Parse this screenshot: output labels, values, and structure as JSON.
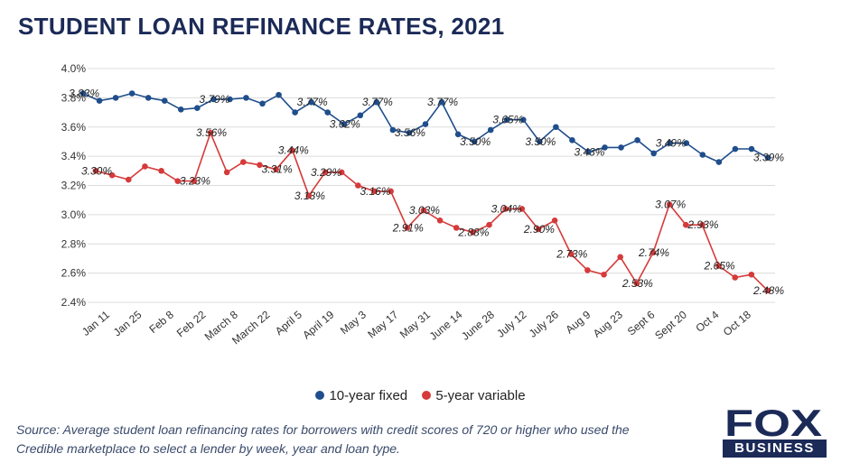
{
  "title": "STUDENT LOAN REFINANCE RATES, 2021",
  "source": "Source: Average student loan refinancing rates for borrowers with credit scores of 720 or higher who used the Credible marketplace to select a lender by week, year and loan type.",
  "logo": {
    "top": "FOX",
    "bottom": "BUSINESS"
  },
  "chart_data": {
    "type": "line",
    "title": "STUDENT LOAN REFINANCE RATES, 2021",
    "xlabel": "",
    "ylabel": "",
    "ylim": [
      2.4,
      4.0
    ],
    "yticks": [
      "4.0%",
      "3.8%",
      "3.6%",
      "3.4%",
      "3.2%",
      "3.0%",
      "2.8%",
      "2.6%",
      "2.4%"
    ],
    "ytick_values": [
      4.0,
      3.8,
      3.6,
      3.4,
      3.2,
      3.0,
      2.8,
      2.6,
      2.4
    ],
    "x_tick_labels": [
      "Jan 11",
      "Jan 25",
      "Feb 8",
      "Feb 22",
      "March 8",
      "March 22",
      "April 5",
      "April 19",
      "May 3",
      "May 17",
      "May 31",
      "June 14",
      "June 28",
      "July 12",
      "July 26",
      "Aug 9",
      "Aug 23",
      "Sept 6",
      "Sept 20",
      "Oct 4",
      "Oct 18"
    ],
    "grid": true,
    "legend_position": "bottom",
    "series": [
      {
        "name": "10-year fixed",
        "color": "#1f4e8c",
        "values": [
          3.83,
          3.78,
          3.8,
          3.83,
          3.8,
          3.78,
          3.72,
          3.73,
          3.79,
          3.79,
          3.8,
          3.76,
          3.82,
          3.7,
          3.77,
          3.7,
          3.62,
          3.68,
          3.77,
          3.58,
          3.56,
          3.62,
          3.77,
          3.55,
          3.5,
          3.58,
          3.65,
          3.65,
          3.5,
          3.6,
          3.51,
          3.43,
          3.46,
          3.46,
          3.51,
          3.42,
          3.49,
          3.49,
          3.41,
          3.36,
          3.45,
          3.45,
          3.39
        ],
        "labels": [
          {
            "i": 0,
            "text": "3.83%"
          },
          {
            "i": 8,
            "text": "3.79%"
          },
          {
            "i": 14,
            "text": "3.77%"
          },
          {
            "i": 16,
            "text": "3.62%"
          },
          {
            "i": 18,
            "text": "3.77%"
          },
          {
            "i": 20,
            "text": "3.56%"
          },
          {
            "i": 22,
            "text": "3.77%"
          },
          {
            "i": 24,
            "text": "3.50%"
          },
          {
            "i": 26,
            "text": "3.65%"
          },
          {
            "i": 28,
            "text": "3.50%"
          },
          {
            "i": 31,
            "text": "3.43%"
          },
          {
            "i": 36,
            "text": "3.49%"
          },
          {
            "i": 42,
            "text": "3.39%"
          }
        ]
      },
      {
        "name": "5-year variable",
        "color": "#d63a3a",
        "values": [
          3.3,
          3.27,
          3.24,
          3.33,
          3.3,
          3.23,
          3.23,
          3.56,
          3.29,
          3.36,
          3.34,
          3.31,
          3.44,
          3.13,
          3.29,
          3.29,
          3.2,
          3.16,
          3.16,
          2.91,
          3.03,
          2.96,
          2.91,
          2.88,
          2.93,
          3.04,
          3.04,
          2.9,
          2.96,
          2.73,
          2.62,
          2.59,
          2.71,
          2.53,
          2.74,
          3.07,
          2.93,
          2.93,
          2.65,
          2.57,
          2.59,
          2.48
        ],
        "labels": [
          {
            "i": 0,
            "text": "3.30%"
          },
          {
            "i": 6,
            "text": "3.23%"
          },
          {
            "i": 7,
            "text": "3.56%"
          },
          {
            "i": 11,
            "text": "3.31%"
          },
          {
            "i": 12,
            "text": "3.44%"
          },
          {
            "i": 13,
            "text": "3.13%"
          },
          {
            "i": 14,
            "text": "3.29%"
          },
          {
            "i": 17,
            "text": "3.16%"
          },
          {
            "i": 19,
            "text": "2.91%"
          },
          {
            "i": 20,
            "text": "3.03%"
          },
          {
            "i": 23,
            "text": "2.88%"
          },
          {
            "i": 25,
            "text": "3.04%"
          },
          {
            "i": 27,
            "text": "2.90%"
          },
          {
            "i": 29,
            "text": "2.73%"
          },
          {
            "i": 33,
            "text": "2.53%"
          },
          {
            "i": 34,
            "text": "2.74%"
          },
          {
            "i": 35,
            "text": "3.07%"
          },
          {
            "i": 37,
            "text": "2.93%"
          },
          {
            "i": 38,
            "text": "2.65%"
          },
          {
            "i": 41,
            "text": "2.48%"
          }
        ]
      }
    ]
  }
}
